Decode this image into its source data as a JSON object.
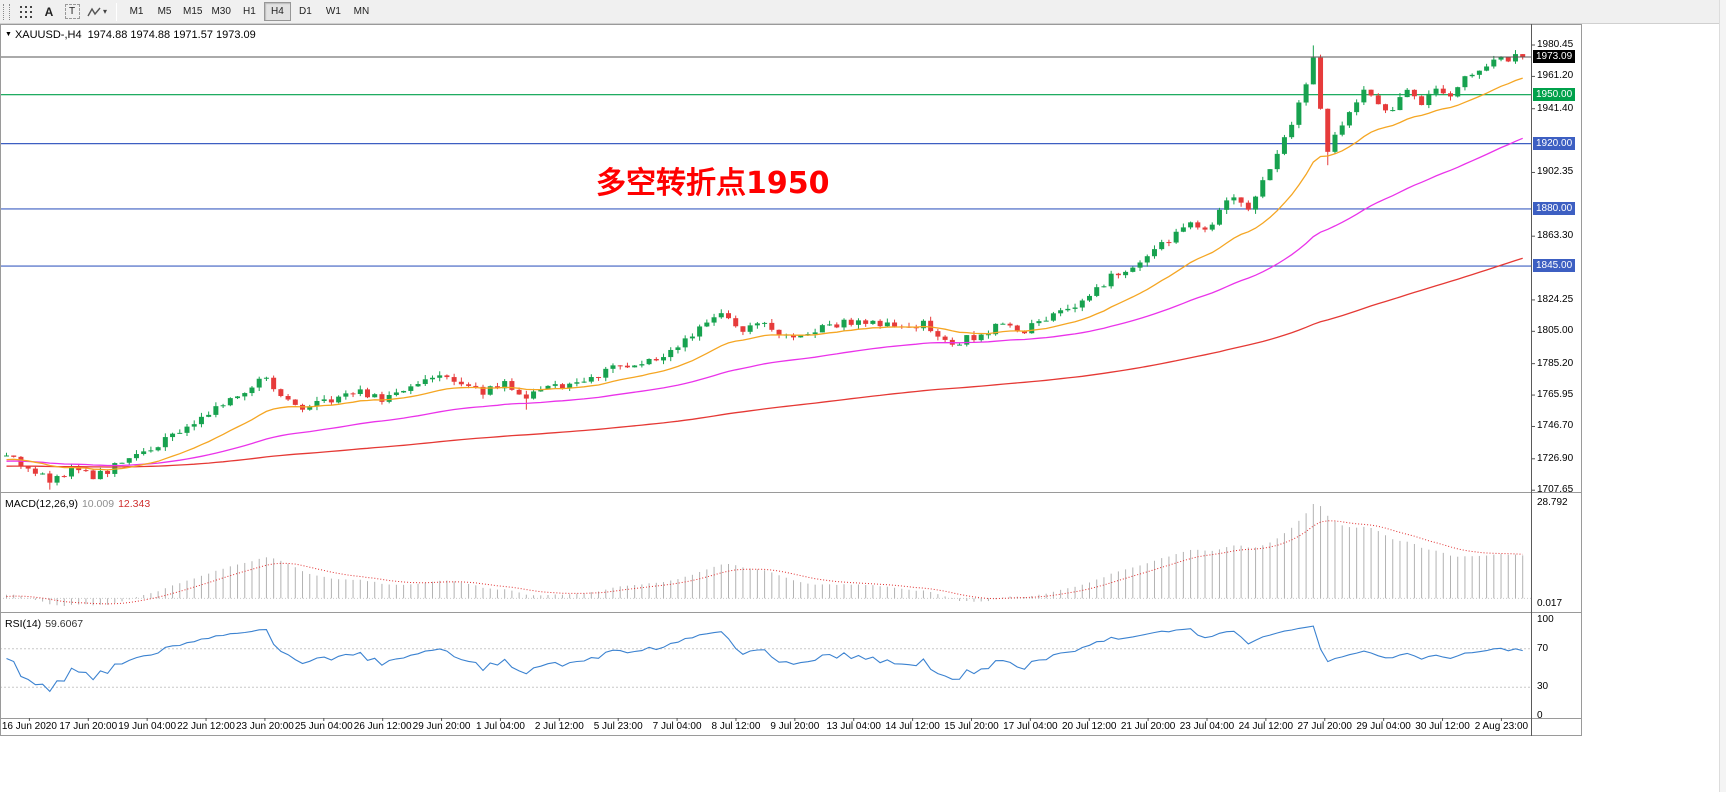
{
  "toolbar": {
    "tools": [
      {
        "name": "grid-dots-icon"
      },
      {
        "name": "text-label-tool",
        "label": "A"
      },
      {
        "name": "text-box-tool",
        "label": "T"
      },
      {
        "name": "shapes-tool",
        "caret": "▾"
      }
    ],
    "timeframes": [
      "M1",
      "M5",
      "M15",
      "M30",
      "H1",
      "H4",
      "D1",
      "W1",
      "MN"
    ],
    "active_timeframe": "H4"
  },
  "chart": {
    "collapse_glyph": "▼",
    "title_symbol": "XAUUSD-,H4",
    "title_ohlc": "1974.88 1974.88 1971.57 1973.09",
    "annotation": {
      "text": "多空转折点1950",
      "color": "#ff0000"
    },
    "colors": {
      "up": "#17a24f",
      "down": "#e63b3b",
      "ma_fast": "#f5a623",
      "ma_mid": "#ea33ea",
      "ma_slow": "#e53935",
      "current_line": "#555555"
    },
    "price_axis_labels": [
      "1980.45",
      "1961.20",
      "1941.40",
      "1902.35",
      "1863.30",
      "1824.25",
      "1805.00",
      "1785.20",
      "1765.95",
      "1746.70",
      "1726.90",
      "1707.65"
    ],
    "price_badges": [
      {
        "value": "1973.09",
        "bg": "#000000"
      },
      {
        "value": "1950.00",
        "bg": "#00a14b"
      },
      {
        "value": "1920.00",
        "bg": "#3d5fc2"
      },
      {
        "value": "1880.00",
        "bg": "#3d5fc2"
      },
      {
        "value": "1845.00",
        "bg": "#3d5fc2"
      }
    ],
    "levels": [
      {
        "value": 1950.0,
        "color": "#00a14b"
      },
      {
        "value": 1920.0,
        "color": "#3d5fc2"
      },
      {
        "value": 1880.0,
        "color": "#3d5fc2"
      },
      {
        "value": 1845.0,
        "color": "#3d5fc2"
      }
    ],
    "current_price": 1973.09
  },
  "macd_panel": {
    "label": "MACD(12,26,9)",
    "value_main": "10.009",
    "value_signal": "12.343",
    "axis_max": "28.792",
    "axis_min": "0.017",
    "histogram_color": "#b2b2b2",
    "signal_color": "#e03030"
  },
  "rsi_panel": {
    "label": "RSI(14)",
    "value": "59.6067",
    "axis": [
      "100",
      "70",
      "30",
      "0"
    ],
    "levels": [
      70,
      30
    ],
    "line_color": "#3b82d0"
  },
  "time_axis": {
    "labels": [
      "16 Jun 2020",
      "17 Jun 20:00",
      "19 Jun 04:00",
      "22 Jun 12:00",
      "23 Jun 20:00",
      "25 Jun 04:00",
      "26 Jun 12:00",
      "29 Jun 20:00",
      "1 Jul 04:00",
      "2 Jul 12:00",
      "5 Jul 23:00",
      "7 Jul 04:00",
      "8 Jul 12:00",
      "9 Jul 20:00",
      "13 Jul 04:00",
      "14 Jul 12:00",
      "15 Jul 20:00",
      "17 Jul 04:00",
      "20 Jul 12:00",
      "21 Jul 20:00",
      "23 Jul 04:00",
      "24 Jul 12:00",
      "27 Jul 20:00",
      "29 Jul 04:00",
      "30 Jul 12:00",
      "2 Aug 23:00"
    ]
  },
  "chart_data": {
    "type": "candlestick",
    "symbol": "XAUUSD-",
    "timeframe": "H4",
    "visible_time_range": [
      "16 Jun 2020",
      "2 Aug 23:00"
    ],
    "price_axis_range": [
      1707.65,
      1980.45
    ],
    "current_ohlc": {
      "open": 1974.88,
      "high": 1974.88,
      "low": 1971.57,
      "close": 1973.09
    },
    "horizontal_lines": [
      1950.0,
      1920.0,
      1880.0,
      1845.0
    ],
    "indicators": [
      "MACD(12,26,9)",
      "RSI(14)",
      "moving averages (orange / magenta / red)"
    ],
    "macd_current": [
      10.009,
      12.343
    ],
    "rsi_current": 59.6067,
    "price_path": [
      [
        0,
        1728
      ],
      [
        3,
        1722
      ],
      [
        6,
        1714
      ],
      [
        9,
        1720
      ],
      [
        12,
        1716
      ],
      [
        15,
        1722
      ],
      [
        18,
        1728
      ],
      [
        22,
        1738
      ],
      [
        26,
        1750
      ],
      [
        30,
        1761
      ],
      [
        33,
        1769
      ],
      [
        36,
        1777
      ],
      [
        38,
        1763
      ],
      [
        41,
        1757
      ],
      [
        44,
        1762
      ],
      [
        48,
        1769
      ],
      [
        52,
        1764
      ],
      [
        55,
        1769
      ],
      [
        58,
        1774
      ],
      [
        60,
        1779
      ],
      [
        63,
        1773
      ],
      [
        66,
        1768
      ],
      [
        69,
        1773
      ],
      [
        72,
        1766
      ],
      [
        76,
        1771
      ],
      [
        80,
        1774
      ],
      [
        84,
        1782
      ],
      [
        88,
        1786
      ],
      [
        92,
        1793
      ],
      [
        96,
        1806
      ],
      [
        99,
        1815
      ],
      [
        102,
        1806
      ],
      [
        105,
        1811
      ],
      [
        108,
        1801
      ],
      [
        112,
        1806
      ],
      [
        116,
        1810
      ],
      [
        120,
        1812
      ],
      [
        124,
        1806
      ],
      [
        127,
        1809
      ],
      [
        131,
        1797
      ],
      [
        134,
        1802
      ],
      [
        138,
        1809
      ],
      [
        141,
        1806
      ],
      [
        144,
        1812
      ],
      [
        147,
        1818
      ],
      [
        150,
        1826
      ],
      [
        153,
        1838
      ],
      [
        156,
        1846
      ],
      [
        159,
        1854
      ],
      [
        162,
        1864
      ],
      [
        164,
        1872
      ],
      [
        166,
        1866
      ],
      [
        168,
        1879
      ],
      [
        170,
        1888
      ],
      [
        172,
        1882
      ],
      [
        174,
        1898
      ],
      [
        176,
        1915
      ],
      [
        178,
        1934
      ],
      [
        180,
        1958
      ],
      [
        181,
        1974
      ],
      [
        182,
        1941
      ],
      [
        183,
        1913
      ],
      [
        184,
        1923
      ],
      [
        186,
        1939
      ],
      [
        188,
        1951
      ],
      [
        190,
        1945
      ],
      [
        192,
        1940
      ],
      [
        194,
        1953
      ],
      [
        196,
        1946
      ],
      [
        198,
        1956
      ],
      [
        200,
        1949
      ],
      [
        202,
        1961
      ],
      [
        204,
        1967
      ],
      [
        206,
        1972
      ],
      [
        208,
        1969
      ],
      [
        210,
        1973.09
      ]
    ]
  }
}
